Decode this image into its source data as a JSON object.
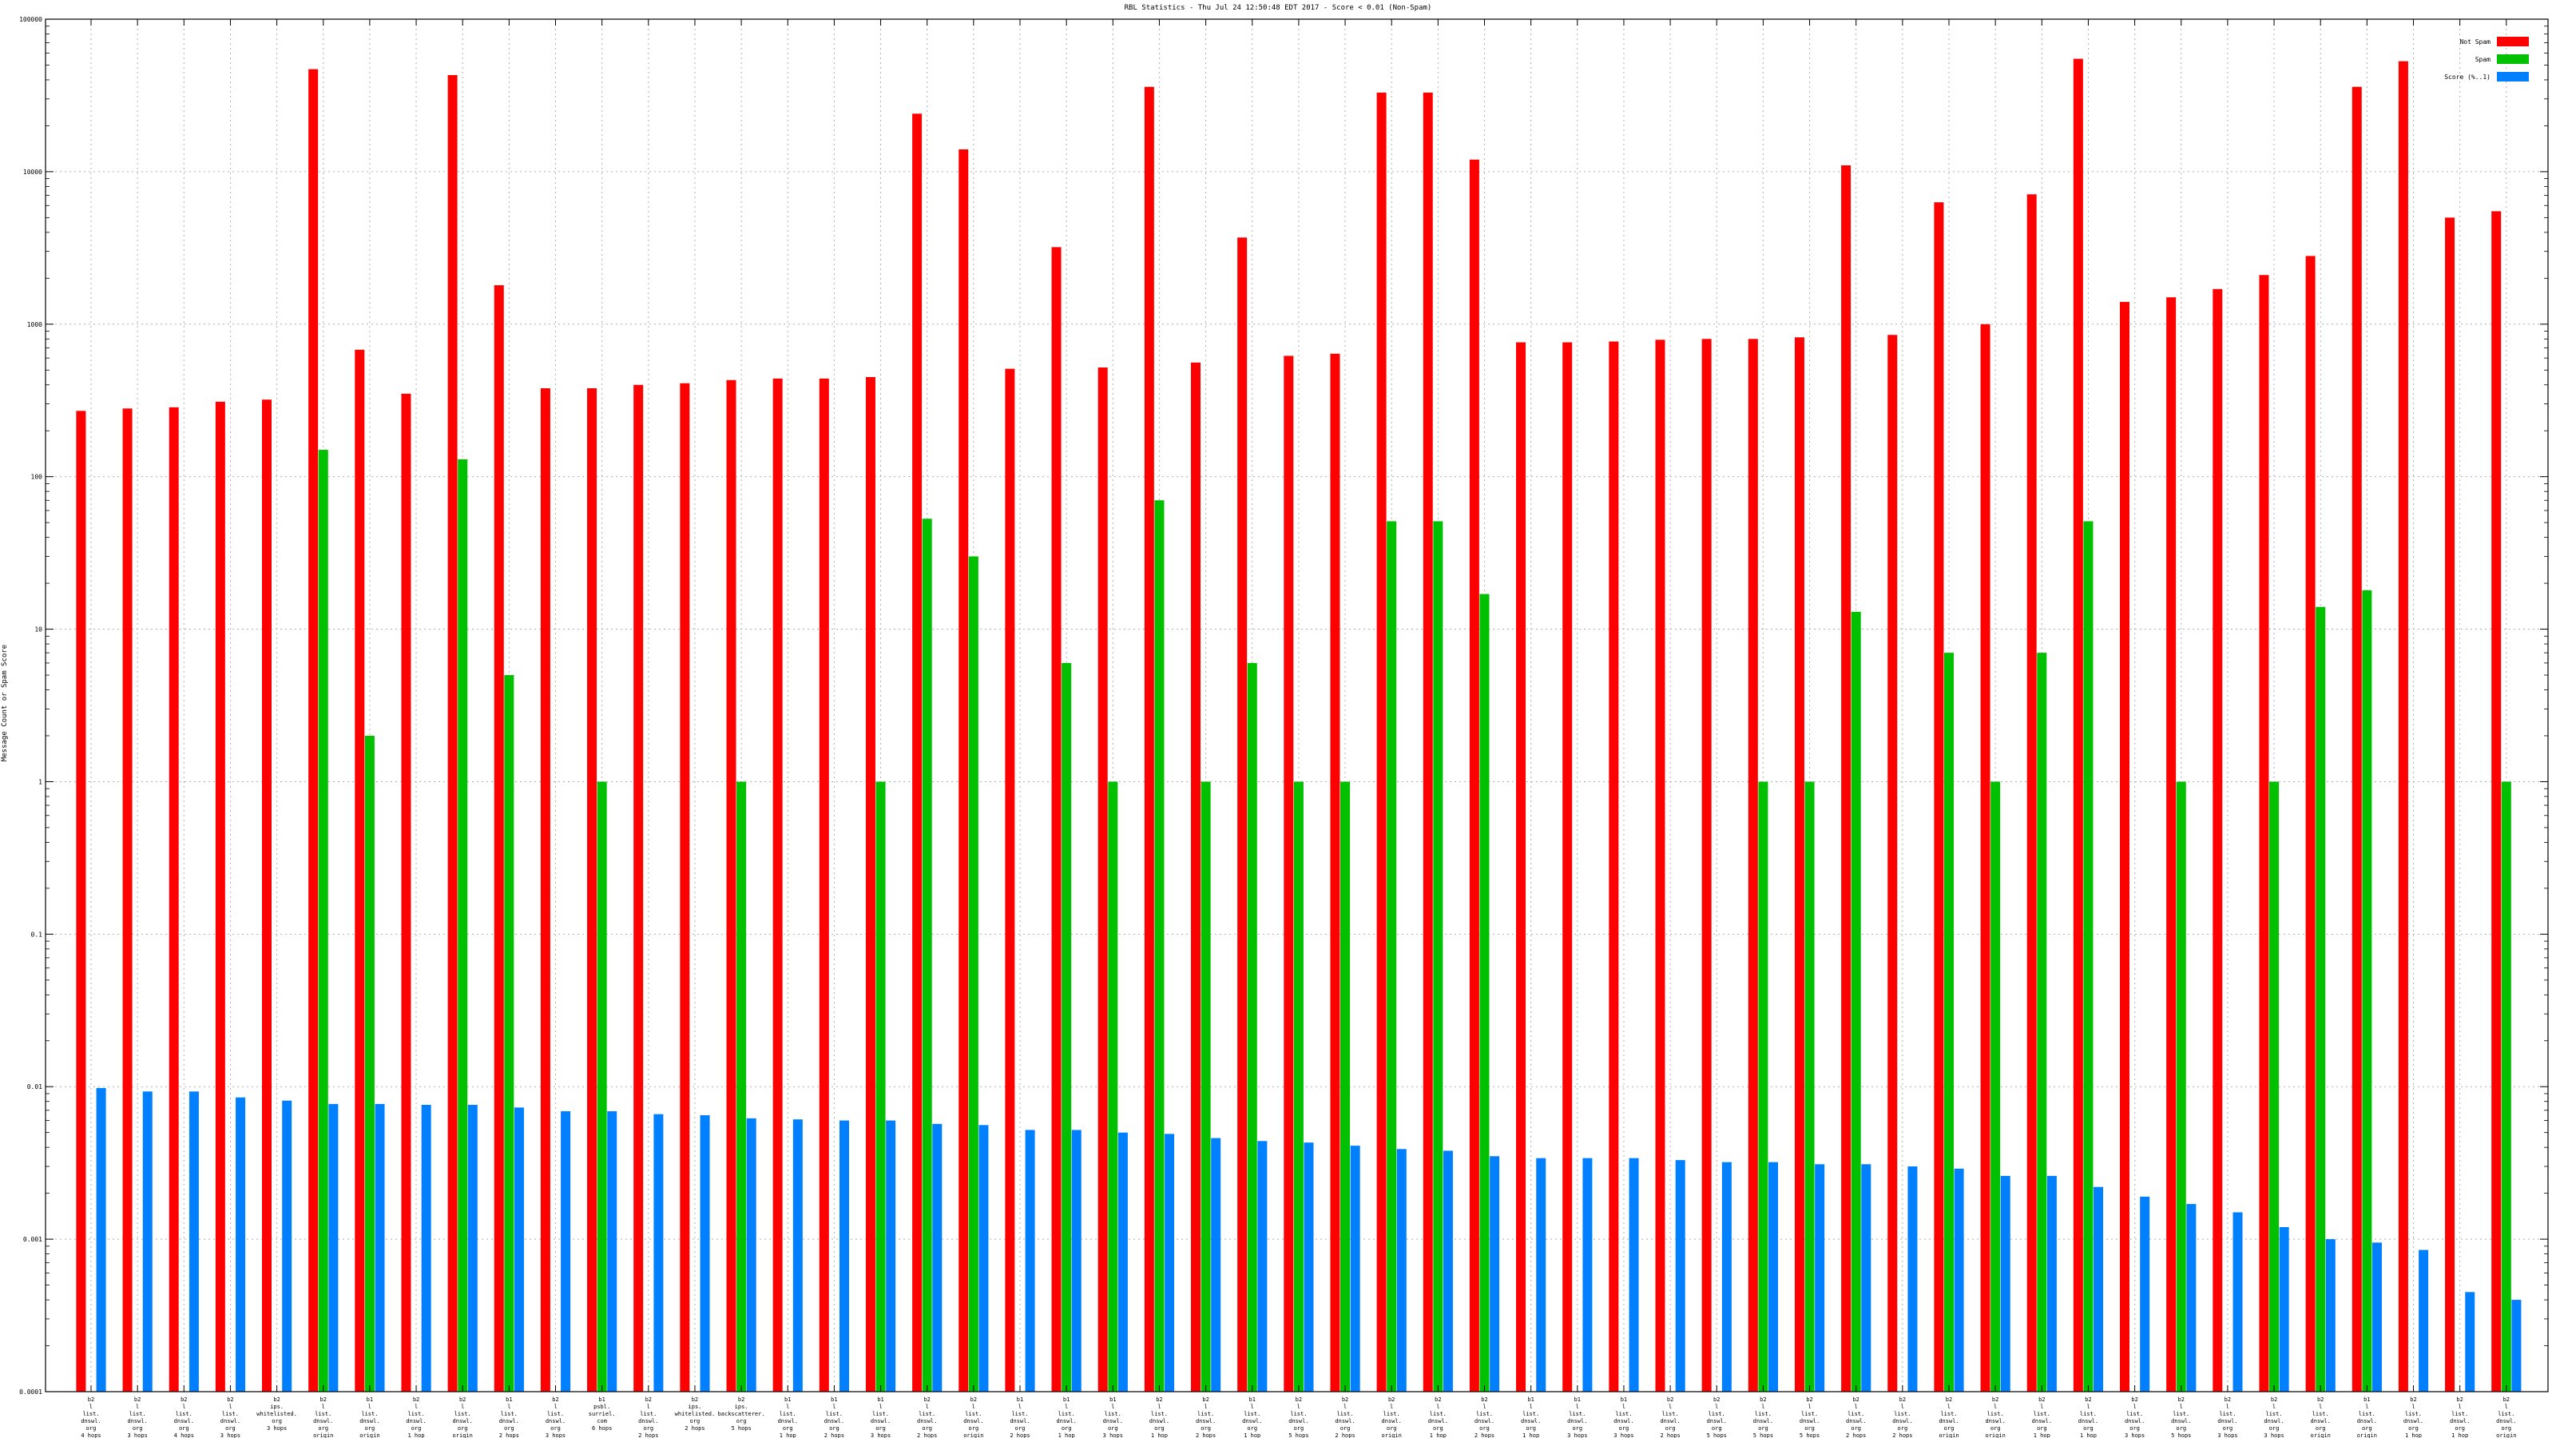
{
  "chart_data": {
    "type": "bar",
    "title": "RBL Statistics - Thu Jul 24 12:50:48 EDT 2017 - Score < 0.01 (Non-Spam)",
    "ylabel": "Message Count or Spam Score",
    "xlabel": "",
    "yscale": "log",
    "ylim": [
      0.0001,
      100000
    ],
    "ytick_labels": [
      "0.0001",
      "0.001",
      "0.01",
      "0.1",
      "1",
      "10",
      "100",
      "1000",
      "10000",
      "100000"
    ],
    "grid": true,
    "legend_position": "top-right",
    "categories": [
      "b2 / l / list. / dnswl. / org / 4 hops",
      "b2 / l / list. / dnswl. / org / 3 hops",
      "b2 / l / list. / dnswl. / org / 4 hops",
      "b2 / l / list. / dnswl. / org / 3 hops",
      "b2 / ips. / whitelisted. / org / 3 hops",
      "b2 / l / list. / dnswl. / org / origin",
      "b1 / l / list. / dnswl. / org / origin",
      "b2 / l / list. / dnswl. / org / 1 hop",
      "b2 / l / list. / dnswl. / org / origin",
      "b1 / l / list. / dnswl. / org / 2 hops",
      "b2 / l / list. / dnswl. / org / 3 hops",
      "b1 / psbl. / surriel. / com / 6 hops",
      "b2 / l / list. / dnswl. / org / 2 hops",
      "b2 / ips. / whitelisted. / org / 2 hops",
      "b2 / ips. / backscatterer. / org / 5 hops",
      "b1 / l / list. / dnswl. / org / 1 hop",
      "b1 / l / list. / dnswl. / org / 2 hops",
      "b1 / l / list. / dnswl. / org / 3 hops",
      "b2 / l / list. / dnswl. / org / 2 hops",
      "b2 / l / list. / dnswl. / org / origin",
      "b1 / l / list. / dnswl. / org / 2 hops",
      "b1 / l / list. / dnswl. / org / 1 hop",
      "b1 / l / list. / dnswl. / org / 3 hops",
      "b2 / l / list. / dnswl. / org / 1 hop",
      "b2 / l / list. / dnswl. / org / 2 hops",
      "b1 / l / list. / dnswl. / org / 1 hop",
      "b2 / l / list. / dnswl. / org / 5 hops",
      "b2 / l / list. / dnswl. / org / 2 hops",
      "b2 / l / list. / dnswl. / org / origin",
      "b2 / l / list. / dnswl. / org / 1 hop",
      "b2 / l / list. / dnswl. / org / 2 hops",
      "b1 / l / list. / dnswl. / org / 1 hop",
      "b1 / l / list. / dnswl. / org / 3 hops",
      "b1 / l / list. / dnswl. / org / 3 hops",
      "b2 / l / list. / dnswl. / org / 2 hops",
      "b2 / l / list. / dnswl. / org / 5 hops",
      "b2 / l / list. / dnswl. / org / 5 hops",
      "b2 / l / list. / dnswl. / org / 5 hops",
      "b2 / l / list. / dnswl. / org / 2 hops",
      "b2 / l / list. / dnswl. / org / 2 hops",
      "b2 / l / list. / dnswl. / org / origin",
      "b2 / l / list. / dnswl. / org / origin",
      "b2 / l / list. / dnswl. / org / 1 hop",
      "b2 / l / list. / dnswl. / org / 1 hop",
      "b2 / l / list. / dnswl. / org / 3 hops",
      "b2 / l / list. / dnswl. / org / 5 hops",
      "b2 / l / list. / dnswl. / org / 3 hops",
      "b2 / l / list. / dnswl. / org / 3 hops",
      "b2 / l / list. / dnswl. / org / origin",
      "b1 / l / list. / dnswl. / org / origin",
      "b2 / l / list. / dnswl. / org / 1 hop",
      "b2 / l / list. / dnswl. / org / 1 hop",
      "b2 / l / list. / dnswl. / org / origin"
    ],
    "series": [
      {
        "name": "Not Spam",
        "color": "#ff0000",
        "values": [
          270,
          280,
          285,
          310,
          320,
          47000,
          680,
          350,
          43000,
          1800,
          380,
          380,
          400,
          410,
          430,
          440,
          440,
          450,
          24000,
          14000,
          510,
          3200,
          520,
          36000,
          560,
          3700,
          620,
          640,
          33000,
          33000,
          12000,
          760,
          760,
          770,
          790,
          800,
          800,
          820,
          11000,
          850,
          6300,
          1000,
          7100,
          55000,
          1400,
          1500,
          1700,
          2100,
          2800,
          36000,
          53000,
          5000,
          5500
        ]
      },
      {
        "name": "Spam",
        "color": "#00c000",
        "values": [
          null,
          null,
          null,
          null,
          null,
          150,
          2,
          null,
          130,
          5,
          null,
          1,
          null,
          null,
          1,
          null,
          null,
          1,
          53,
          30,
          null,
          6,
          1,
          70,
          1,
          6,
          1,
          1,
          51,
          51,
          17,
          null,
          null,
          null,
          null,
          null,
          1,
          1,
          13,
          null,
          7,
          1,
          7,
          51,
          null,
          1,
          null,
          1,
          14,
          18,
          null,
          null,
          1
        ]
      },
      {
        "name": "Score (%..1)",
        "color": "#0080ff",
        "values": [
          0.0098,
          0.0093,
          0.0093,
          0.0085,
          0.0081,
          0.0077,
          0.0077,
          0.0076,
          0.0076,
          0.0073,
          0.0069,
          0.0069,
          0.0066,
          0.0065,
          0.0062,
          0.0061,
          0.006,
          0.006,
          0.0057,
          0.0056,
          0.0052,
          0.0052,
          0.005,
          0.0049,
          0.0046,
          0.0044,
          0.0043,
          0.0041,
          0.0039,
          0.0038,
          0.0035,
          0.0034,
          0.0034,
          0.0034,
          0.0033,
          0.0032,
          0.0032,
          0.0031,
          0.0031,
          0.003,
          0.0029,
          0.0026,
          0.0026,
          0.0022,
          0.0019,
          0.0017,
          0.0015,
          0.0012,
          0.001,
          0.00095,
          0.00085,
          0.00045,
          0.0004
        ]
      }
    ]
  }
}
